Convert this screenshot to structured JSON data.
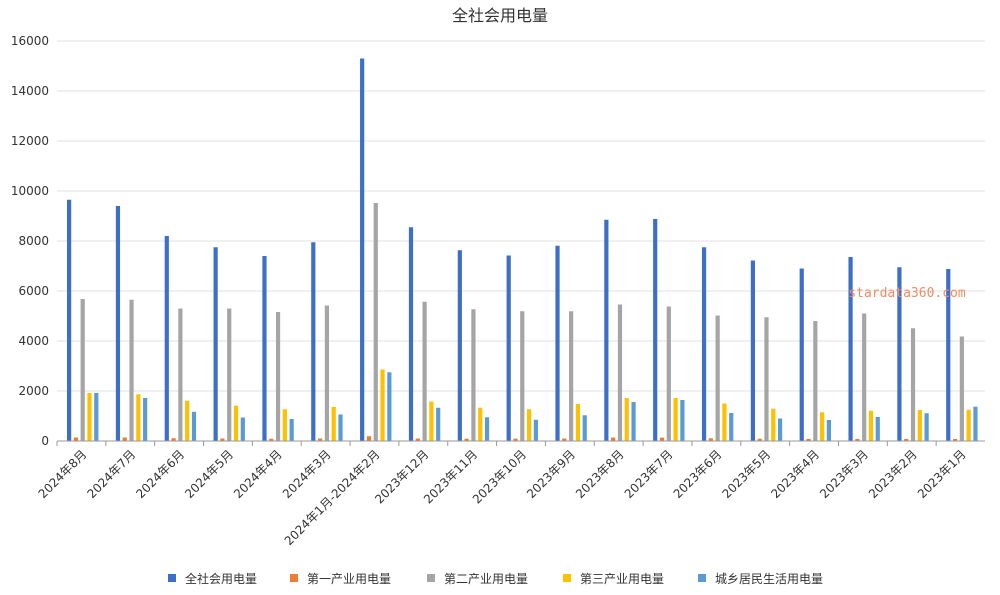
{
  "chart_data": {
    "type": "bar",
    "title": "全社会用电量",
    "xlabel": "",
    "ylabel": "",
    "ylim": [
      0,
      16000
    ],
    "yticks": [
      "0",
      "2000",
      "4000",
      "6000",
      "8000",
      "10000",
      "12000",
      "14000",
      "16000"
    ],
    "grid": true,
    "legend_position": "bottom",
    "categories": [
      "2024年8月",
      "2024年7月",
      "2024年6月",
      "2024年5月",
      "2024年4月",
      "2024年3月",
      "2024年1月-2024年2月",
      "2023年12月",
      "2023年11月",
      "2023年10月",
      "2023年9月",
      "2023年8月",
      "2023年7月",
      "2023年6月",
      "2023年5月",
      "2023年4月",
      "2023年3月",
      "2023年2月",
      "2023年1月"
    ],
    "series": [
      {
        "name": "全社会用电量",
        "color": "#3d6fc8",
        "values": [
          9650,
          9400,
          8200,
          7750,
          7400,
          7950,
          15300,
          8550,
          7630,
          7420,
          7810,
          8850,
          8880,
          7750,
          7220,
          6900,
          7360,
          6950,
          6880
        ]
      },
      {
        "name": "第一产业用电量",
        "color": "#ed7d31",
        "values": [
          140,
          140,
          110,
          100,
          90,
          100,
          190,
          100,
          90,
          95,
          100,
          140,
          135,
          110,
          90,
          85,
          80,
          80,
          80
        ]
      },
      {
        "name": "第二产业用电量",
        "color": "#a5a5a5",
        "values": [
          5680,
          5650,
          5300,
          5300,
          5160,
          5420,
          9520,
          5570,
          5270,
          5190,
          5190,
          5460,
          5380,
          5020,
          4950,
          4800,
          5100,
          4510,
          4180
        ]
      },
      {
        "name": "第三产业用电量",
        "color": "#ffc000",
        "values": [
          1920,
          1870,
          1610,
          1410,
          1270,
          1360,
          2860,
          1580,
          1330,
          1270,
          1480,
          1720,
          1720,
          1500,
          1290,
          1150,
          1210,
          1240,
          1250
        ]
      },
      {
        "name": "城乡居民生活用电量",
        "color": "#5b9bd5",
        "values": [
          1920,
          1720,
          1170,
          940,
          880,
          1060,
          2750,
          1330,
          950,
          850,
          1030,
          1560,
          1640,
          1120,
          900,
          840,
          960,
          1110,
          1370
        ]
      }
    ]
  },
  "watermark": "stardata360.com"
}
